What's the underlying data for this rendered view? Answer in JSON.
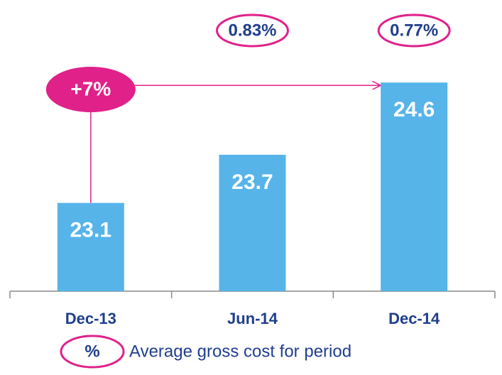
{
  "chart_data": {
    "type": "bar",
    "categories": [
      "Dec-13",
      "Jun-14",
      "Dec-14"
    ],
    "values": [
      23.1,
      23.7,
      24.6
    ],
    "color": "#56b4e9",
    "ylim": [
      22,
      25
    ],
    "cost_labels": [
      null,
      "0.83%",
      "0.77%"
    ],
    "growth_label": "+7%",
    "legend": {
      "symbol": "%",
      "text": "Average gross cost for period"
    }
  }
}
